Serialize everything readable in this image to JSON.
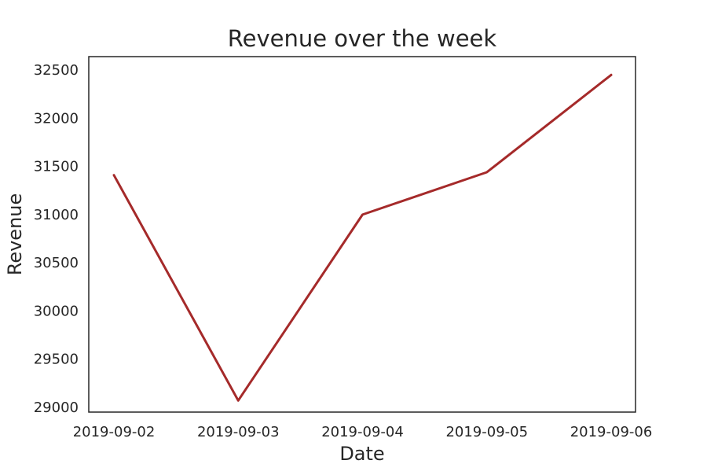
{
  "chart_data": {
    "type": "line",
    "title": "Revenue over the week",
    "xlabel": "Date",
    "ylabel": "Revenue",
    "x": [
      "2019-09-02",
      "2019-09-03",
      "2019-09-04",
      "2019-09-05",
      "2019-09-06"
    ],
    "series": [
      {
        "values": [
          31410,
          29070,
          31000,
          31440,
          32450
        ],
        "color": "#a52a2a"
      }
    ],
    "yticks": [
      29000,
      29500,
      30000,
      30500,
      31000,
      31500,
      32000,
      32500
    ],
    "ylim": [
      28950,
      32640
    ],
    "grid": false,
    "legend": "none"
  }
}
